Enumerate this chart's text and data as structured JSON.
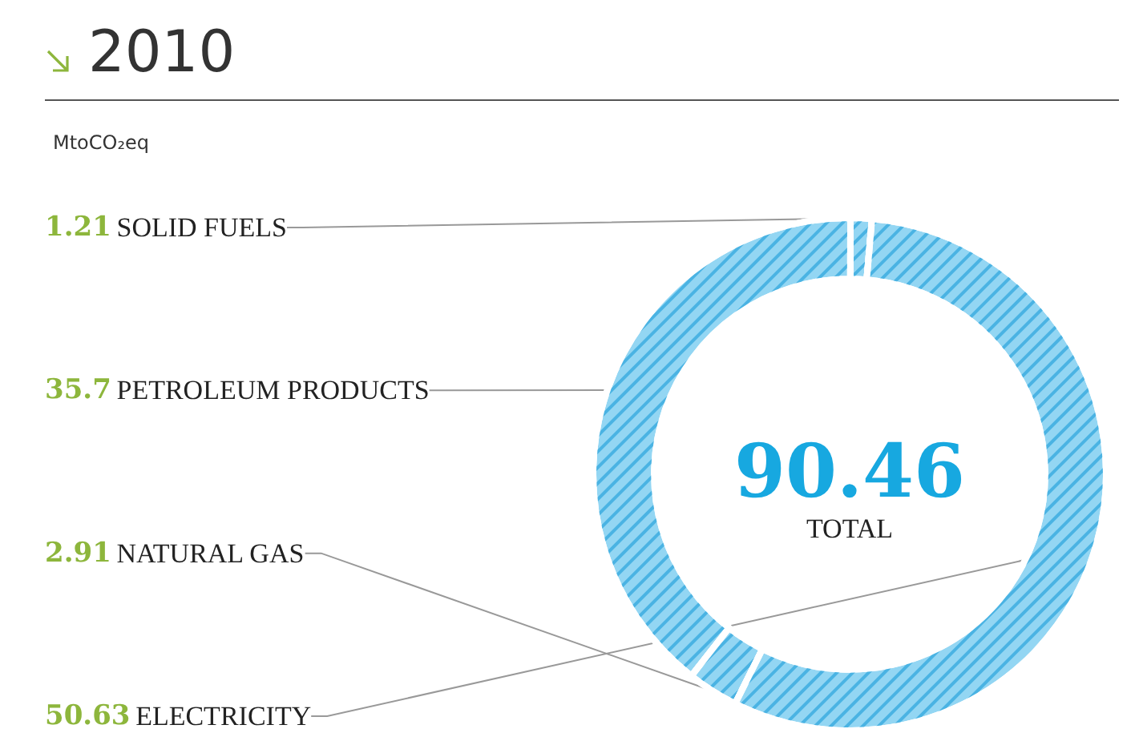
{
  "chart_data": {
    "type": "donut",
    "title": "2010",
    "subtitle": "MtoCO₂eq",
    "categories": [
      "SOLID FUELS",
      "PETROLEUM PRODUCTS",
      "NATURAL GAS",
      "ELECTRICITY"
    ],
    "values": [
      1.21,
      35.7,
      2.91,
      50.63
    ],
    "colors": [
      "#93d6f3",
      "#93d6f3",
      "#93d6f3",
      "#93d6f3"
    ],
    "data_labels": true,
    "annotations": [
      "90.46",
      "TOTAL"
    ]
  }
}
